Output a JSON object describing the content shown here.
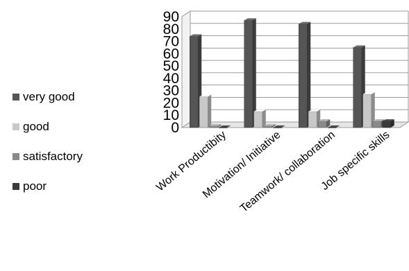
{
  "chart_data": {
    "type": "bar",
    "title": "",
    "xlabel": "",
    "ylabel": "",
    "ylim": [
      0,
      90
    ],
    "yticks": [
      0,
      10,
      20,
      30,
      40,
      50,
      60,
      70,
      80,
      90
    ],
    "grid": true,
    "legend_position": "left",
    "categories": [
      "Work Productibity",
      "Motivation/ Initiative",
      "Teamwork/ collaboration",
      "Job specific skills"
    ],
    "series": [
      {
        "name": "very good",
        "color": "#555555",
        "values": [
          74,
          87,
          84,
          65
        ]
      },
      {
        "name": "good",
        "color": "#c8c8c8",
        "values": [
          25,
          13,
          13,
          27
        ]
      },
      {
        "name": "satisfactory",
        "color": "#8a8a8a",
        "values": [
          1,
          1,
          5,
          5
        ]
      },
      {
        "name": "poor",
        "color": "#3a3a3a",
        "values": [
          0,
          0,
          0,
          5
        ]
      }
    ]
  }
}
